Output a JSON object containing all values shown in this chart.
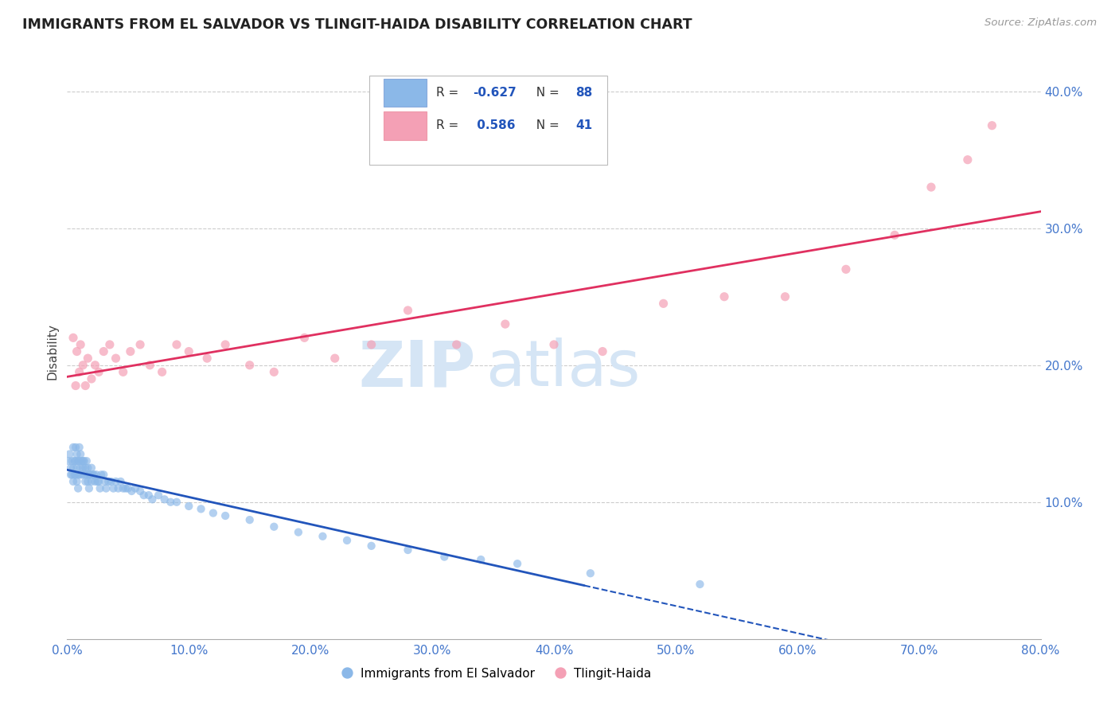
{
  "title": "IMMIGRANTS FROM EL SALVADOR VS TLINGIT-HAIDA DISABILITY CORRELATION CHART",
  "source": "Source: ZipAtlas.com",
  "ylabel": "Disability",
  "xlim": [
    0.0,
    0.8
  ],
  "ylim": [
    0.0,
    0.42
  ],
  "xticks": [
    0.0,
    0.1,
    0.2,
    0.3,
    0.4,
    0.5,
    0.6,
    0.7,
    0.8
  ],
  "yticks_right": [
    0.1,
    0.2,
    0.3,
    0.4
  ],
  "blue_color": "#8BB8E8",
  "pink_color": "#F4A0B5",
  "blue_line_color": "#2255BB",
  "pink_line_color": "#E03060",
  "watermark_color": "#D5E5F5",
  "legend_label_blue": "Immigrants from El Salvador",
  "legend_label_pink": "Tlingit-Haida",
  "blue_x": [
    0.001,
    0.002,
    0.003,
    0.003,
    0.004,
    0.004,
    0.005,
    0.005,
    0.005,
    0.006,
    0.006,
    0.007,
    0.007,
    0.007,
    0.008,
    0.008,
    0.008,
    0.009,
    0.009,
    0.009,
    0.01,
    0.01,
    0.01,
    0.011,
    0.011,
    0.012,
    0.012,
    0.013,
    0.013,
    0.014,
    0.014,
    0.015,
    0.015,
    0.016,
    0.016,
    0.017,
    0.017,
    0.018,
    0.018,
    0.019,
    0.02,
    0.02,
    0.021,
    0.022,
    0.023,
    0.024,
    0.025,
    0.026,
    0.027,
    0.028,
    0.03,
    0.031,
    0.032,
    0.034,
    0.036,
    0.038,
    0.04,
    0.042,
    0.044,
    0.046,
    0.048,
    0.05,
    0.053,
    0.056,
    0.06,
    0.063,
    0.067,
    0.07,
    0.075,
    0.08,
    0.085,
    0.09,
    0.1,
    0.11,
    0.12,
    0.13,
    0.15,
    0.17,
    0.19,
    0.21,
    0.23,
    0.25,
    0.28,
    0.31,
    0.34,
    0.37,
    0.43,
    0.52
  ],
  "blue_y": [
    0.13,
    0.135,
    0.125,
    0.12,
    0.13,
    0.12,
    0.14,
    0.125,
    0.115,
    0.13,
    0.12,
    0.14,
    0.13,
    0.12,
    0.135,
    0.125,
    0.115,
    0.13,
    0.12,
    0.11,
    0.14,
    0.13,
    0.12,
    0.135,
    0.125,
    0.13,
    0.12,
    0.13,
    0.125,
    0.13,
    0.12,
    0.125,
    0.115,
    0.13,
    0.12,
    0.125,
    0.115,
    0.12,
    0.11,
    0.12,
    0.125,
    0.115,
    0.12,
    0.12,
    0.115,
    0.12,
    0.115,
    0.115,
    0.11,
    0.12,
    0.12,
    0.115,
    0.11,
    0.115,
    0.115,
    0.11,
    0.115,
    0.11,
    0.115,
    0.11,
    0.11,
    0.11,
    0.108,
    0.11,
    0.108,
    0.105,
    0.105,
    0.102,
    0.105,
    0.102,
    0.1,
    0.1,
    0.097,
    0.095,
    0.092,
    0.09,
    0.087,
    0.082,
    0.078,
    0.075,
    0.072,
    0.068,
    0.065,
    0.06,
    0.058,
    0.055,
    0.048,
    0.04
  ],
  "pink_x": [
    0.005,
    0.007,
    0.008,
    0.01,
    0.011,
    0.013,
    0.015,
    0.017,
    0.02,
    0.023,
    0.026,
    0.03,
    0.035,
    0.04,
    0.046,
    0.052,
    0.06,
    0.068,
    0.078,
    0.09,
    0.1,
    0.115,
    0.13,
    0.15,
    0.17,
    0.195,
    0.22,
    0.25,
    0.28,
    0.32,
    0.36,
    0.4,
    0.44,
    0.49,
    0.54,
    0.59,
    0.64,
    0.68,
    0.71,
    0.74,
    0.76
  ],
  "pink_y": [
    0.22,
    0.185,
    0.21,
    0.195,
    0.215,
    0.2,
    0.185,
    0.205,
    0.19,
    0.2,
    0.195,
    0.21,
    0.215,
    0.205,
    0.195,
    0.21,
    0.215,
    0.2,
    0.195,
    0.215,
    0.21,
    0.205,
    0.215,
    0.2,
    0.195,
    0.22,
    0.205,
    0.215,
    0.24,
    0.215,
    0.23,
    0.215,
    0.21,
    0.245,
    0.25,
    0.25,
    0.27,
    0.295,
    0.33,
    0.35,
    0.375
  ]
}
